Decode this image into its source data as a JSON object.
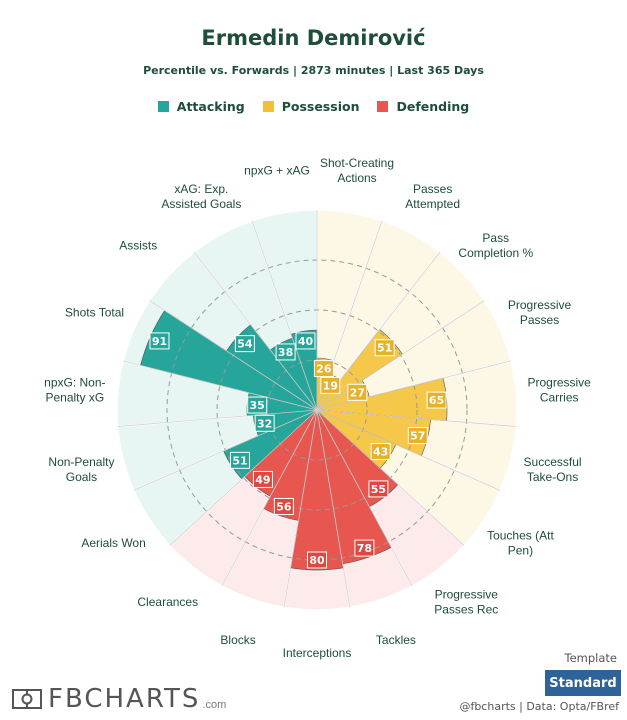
{
  "title": "Ermedin Demirović",
  "subtitle": "Percentile vs. Forwards | 2873 minutes | Last 365 Days",
  "legend": [
    {
      "label": "Attacking",
      "color": "#26a69a"
    },
    {
      "label": "Possession",
      "color": "#f2c037"
    },
    {
      "label": "Defending",
      "color": "#e8574f"
    }
  ],
  "colors": {
    "Attacking": {
      "bar": "#26a69a",
      "bg": "#e8f6f3",
      "label": "#26a69a"
    },
    "Possession": {
      "bar": "#f5c84a",
      "bg": "#fdf7e6",
      "label": "#e8b12b"
    },
    "Defending": {
      "bar": "#e8574f",
      "bg": "#fcebea",
      "label": "#e0483f"
    },
    "text": "#1e4d3a"
  },
  "chart_data": {
    "type": "radar-bar",
    "range": [
      0,
      100
    ],
    "start_angle_deg": 0,
    "direction": "clockwise",
    "categories": [
      {
        "label": "Shot-Creating Actions",
        "lines": [
          "Shot-Creating",
          "Actions"
        ],
        "group": "Possession",
        "value": 26
      },
      {
        "label": "Passes Attempted",
        "lines": [
          "Passes",
          "Attempted"
        ],
        "group": "Possession",
        "value": 19
      },
      {
        "label": "Pass Completion %",
        "lines": [
          "Pass",
          "Completion %"
        ],
        "group": "Possession",
        "value": 51
      },
      {
        "label": "Progressive Passes",
        "lines": [
          "Progressive",
          "Passes"
        ],
        "group": "Possession",
        "value": 27
      },
      {
        "label": "Progressive Carries",
        "lines": [
          "Progressive",
          "Carries"
        ],
        "group": "Possession",
        "value": 65
      },
      {
        "label": "Successful Take-Ons",
        "lines": [
          "Successful",
          "Take-Ons"
        ],
        "group": "Possession",
        "value": 57
      },
      {
        "label": "Touches (Att Pen)",
        "lines": [
          "Touches (Att",
          "Pen)"
        ],
        "group": "Possession",
        "value": 43
      },
      {
        "label": "Progressive Passes Rec",
        "lines": [
          "Progressive",
          "Passes Rec"
        ],
        "group": "Defending",
        "value": 55
      },
      {
        "label": "Tackles",
        "lines": [
          "Tackles"
        ],
        "group": "Defending",
        "value": 78
      },
      {
        "label": "Interceptions",
        "lines": [
          "Interceptions"
        ],
        "group": "Defending",
        "value": 80
      },
      {
        "label": "Blocks",
        "lines": [
          "Blocks"
        ],
        "group": "Defending",
        "value": 56
      },
      {
        "label": "Clearances",
        "lines": [
          "Clearances"
        ],
        "group": "Defending",
        "value": 49
      },
      {
        "label": "Aerials Won",
        "lines": [
          "Aerials Won"
        ],
        "group": "Attacking",
        "value": 51
      },
      {
        "label": "Non-Penalty Goals",
        "lines": [
          "Non-Penalty",
          "Goals"
        ],
        "group": "Attacking",
        "value": 32
      },
      {
        "label": "npxG: Non-Penalty xG",
        "lines": [
          "npxG: Non-",
          "Penalty xG"
        ],
        "group": "Attacking",
        "value": 35
      },
      {
        "label": "Shots Total",
        "lines": [
          "Shots Total"
        ],
        "group": "Attacking",
        "value": 91
      },
      {
        "label": "Assists",
        "lines": [
          "Assists"
        ],
        "group": "Attacking",
        "value": 54
      },
      {
        "label": "xAG: Exp. Assisted Goals",
        "lines": [
          "xAG: Exp.",
          "Assisted Goals"
        ],
        "group": "Attacking",
        "value": 38
      },
      {
        "label": "npxG + xAG",
        "lines": [
          "npxG + xAG"
        ],
        "group": "Attacking",
        "value": 40
      }
    ]
  },
  "footer": {
    "logo_text": "FBCHARTS",
    "logo_suffix": ".com",
    "template_label": "Template",
    "template_button": "Standard",
    "credit": "@fbcharts | Data: Opta/FBref"
  }
}
